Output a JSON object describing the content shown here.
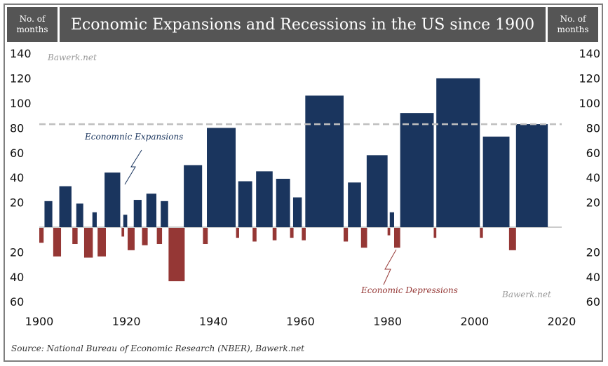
{
  "header": {
    "left_label": "No. of months",
    "title": "Economic Expansions and Recessions in the US since 1900",
    "right_label": "No. of months"
  },
  "watermark_top": "Bawerk.net",
  "watermark_bottom": "Bawerk.net",
  "source": "Source: National Bureau of Economic Research (NBER), Bawerk.net",
  "colors": {
    "expansion": "#1a355e",
    "recession": "#953735",
    "reference": "#bfbfbf",
    "header_bg": "#555555"
  },
  "chart_data": {
    "type": "bar",
    "title": "Economic Expansions and Recessions in the US since 1900",
    "ylabel": "No. of months",
    "xlim": [
      1900,
      2020
    ],
    "ylim": [
      -60,
      140
    ],
    "x_ticks": [
      1900,
      1920,
      1940,
      1960,
      1980,
      2000,
      2020
    ],
    "y_ticks_up": [
      20,
      40,
      60,
      80,
      100,
      120,
      140
    ],
    "y_ticks_down": [
      20,
      40,
      60
    ],
    "reference_line": 83,
    "annotation_expansion": "Economnic Expansions",
    "annotation_recession": "Economic Depressions",
    "expansions": [
      {
        "start": 1901.2,
        "end": 1903.0,
        "months": 21
      },
      {
        "start": 1904.6,
        "end": 1907.4,
        "months": 33
      },
      {
        "start": 1908.5,
        "end": 1910.1,
        "months": 19
      },
      {
        "start": 1912.2,
        "end": 1913.2,
        "months": 12
      },
      {
        "start": 1915.0,
        "end": 1918.6,
        "months": 44
      },
      {
        "start": 1919.3,
        "end": 1920.2,
        "months": 10
      },
      {
        "start": 1921.7,
        "end": 1923.5,
        "months": 22
      },
      {
        "start": 1924.6,
        "end": 1926.9,
        "months": 27
      },
      {
        "start": 1927.9,
        "end": 1929.6,
        "months": 21
      },
      {
        "start": 1933.2,
        "end": 1937.4,
        "months": 50
      },
      {
        "start": 1938.5,
        "end": 1945.1,
        "months": 80
      },
      {
        "start": 1945.7,
        "end": 1948.9,
        "months": 37
      },
      {
        "start": 1949.8,
        "end": 1953.6,
        "months": 45
      },
      {
        "start": 1954.4,
        "end": 1957.6,
        "months": 39
      },
      {
        "start": 1958.3,
        "end": 1960.3,
        "months": 24
      },
      {
        "start": 1961.1,
        "end": 1969.9,
        "months": 106
      },
      {
        "start": 1970.9,
        "end": 1973.9,
        "months": 36
      },
      {
        "start": 1975.2,
        "end": 1980.0,
        "months": 58
      },
      {
        "start": 1980.5,
        "end": 1981.5,
        "months": 12
      },
      {
        "start": 1982.9,
        "end": 1990.6,
        "months": 92
      },
      {
        "start": 1991.2,
        "end": 2001.2,
        "months": 120
      },
      {
        "start": 2001.9,
        "end": 2008.0,
        "months": 73
      },
      {
        "start": 2009.5,
        "end": 2016.8,
        "months": 83
      }
    ],
    "recessions": [
      {
        "start": 1900.0,
        "end": 1901.0,
        "months": 12
      },
      {
        "start": 1903.2,
        "end": 1905.0,
        "months": 23
      },
      {
        "start": 1907.6,
        "end": 1908.8,
        "months": 13
      },
      {
        "start": 1910.3,
        "end": 1912.3,
        "months": 24
      },
      {
        "start": 1913.4,
        "end": 1915.3,
        "months": 23
      },
      {
        "start": 1918.9,
        "end": 1919.5,
        "months": 7
      },
      {
        "start": 1920.3,
        "end": 1921.9,
        "months": 18
      },
      {
        "start": 1923.6,
        "end": 1924.9,
        "months": 14
      },
      {
        "start": 1927.0,
        "end": 1928.2,
        "months": 13
      },
      {
        "start": 1929.7,
        "end": 1933.4,
        "months": 43
      },
      {
        "start": 1937.6,
        "end": 1938.7,
        "months": 13
      },
      {
        "start": 1945.2,
        "end": 1945.9,
        "months": 8
      },
      {
        "start": 1949.0,
        "end": 1949.9,
        "months": 11
      },
      {
        "start": 1953.6,
        "end": 1954.5,
        "months": 10
      },
      {
        "start": 1957.6,
        "end": 1958.4,
        "months": 8
      },
      {
        "start": 1960.3,
        "end": 1961.2,
        "months": 10
      },
      {
        "start": 1969.9,
        "end": 1970.9,
        "months": 11
      },
      {
        "start": 1973.9,
        "end": 1975.3,
        "months": 16
      },
      {
        "start": 1980.0,
        "end": 1980.6,
        "months": 6
      },
      {
        "start": 1981.5,
        "end": 1982.9,
        "months": 16
      },
      {
        "start": 1990.6,
        "end": 1991.2,
        "months": 8
      },
      {
        "start": 2001.2,
        "end": 2001.9,
        "months": 8
      },
      {
        "start": 2007.9,
        "end": 2009.5,
        "months": 18
      }
    ]
  }
}
